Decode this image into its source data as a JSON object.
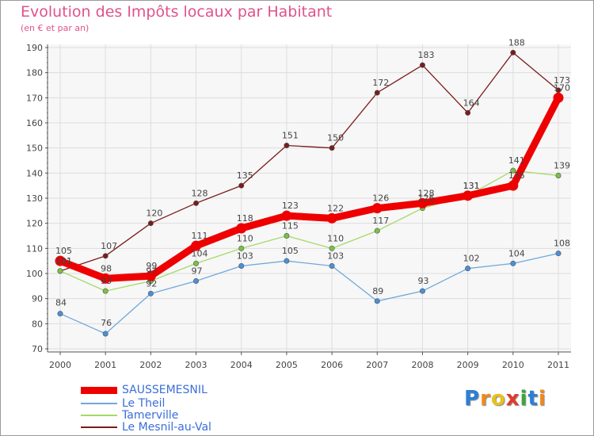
{
  "title": "Evolution des Impôts locaux par Habitant",
  "subtitle": "(en € et par an)",
  "logo": {
    "text": "Proxiti",
    "letters": [
      "P",
      "r",
      "o",
      "x",
      "i",
      "t",
      "i"
    ],
    "colors": [
      "#2b7fd6",
      "#f08a1c",
      "#e8c21a",
      "#e23a2a",
      "#3aa63a",
      "#2b7fd6",
      "#f08a1c"
    ]
  },
  "chart_data": {
    "type": "line",
    "title": "Evolution des Impôts locaux par Habitant",
    "subtitle": "(en € et par an)",
    "x": [
      "2000",
      "2001",
      "2002",
      "2003",
      "2004",
      "2005",
      "2006",
      "2007",
      "2008",
      "2009",
      "2010",
      "2011"
    ],
    "ylim": [
      70,
      190
    ],
    "yticks": [
      70,
      80,
      90,
      100,
      110,
      120,
      130,
      140,
      150,
      160,
      170,
      180,
      190
    ],
    "grid": true,
    "legend_position": "bottom-left",
    "series": [
      {
        "name": "Le Mesnil-au-Val",
        "color": "#7a1c1c",
        "values": [
          101,
          107,
          120,
          128,
          135,
          151,
          150,
          172,
          183,
          164,
          188,
          173
        ]
      },
      {
        "name": "Tamerville",
        "color": "#a6d96a",
        "marker": "#7ac143",
        "values": [
          101,
          93,
          97,
          104,
          110,
          115,
          110,
          117,
          126,
          131,
          141,
          139
        ]
      },
      {
        "name": "Le Theil",
        "color": "#6fa8dc",
        "marker": "#4a90d9",
        "values": [
          84,
          76,
          92,
          97,
          103,
          105,
          103,
          89,
          93,
          102,
          104,
          108
        ]
      },
      {
        "name": "SAUSSEMESNIL",
        "color": "#ee0000",
        "values": [
          105,
          98,
          99,
          111,
          118,
          123,
          122,
          126,
          128,
          131,
          135,
          170
        ]
      }
    ],
    "legend": [
      "SAUSSEMESNIL",
      "Le Theil",
      "Tamerville",
      "Le Mesnil-au-Val"
    ]
  }
}
